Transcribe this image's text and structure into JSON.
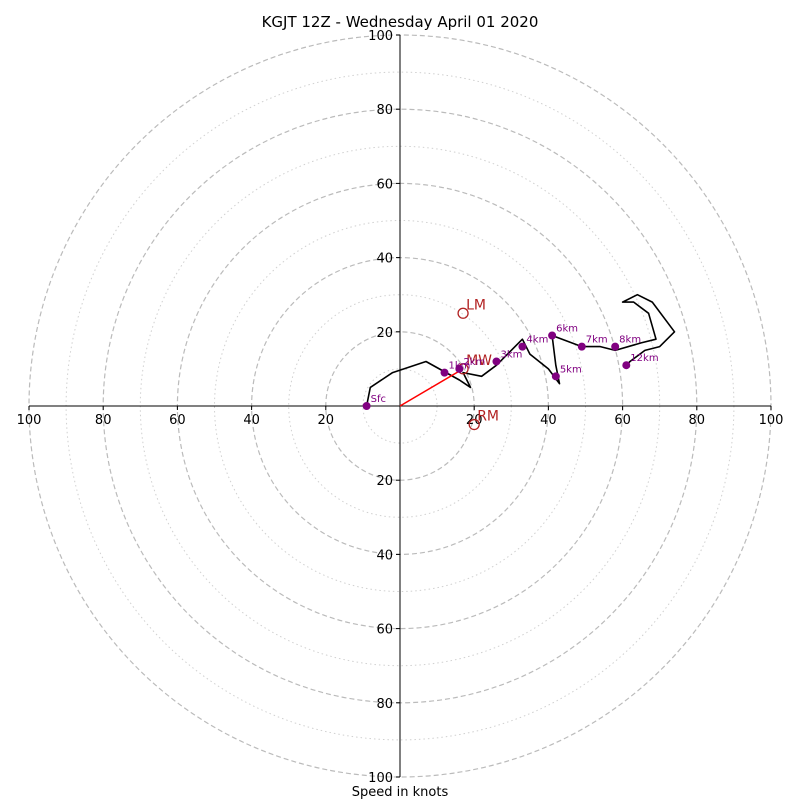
{
  "chart_data": {
    "type": "hodograph",
    "title": "KGJT 12Z - Wednesday April 01 2020",
    "xlabel": "Speed in knots",
    "range": [
      -100,
      100
    ],
    "rings_dashed": [
      20,
      40,
      60,
      80,
      100
    ],
    "rings_dotted": [
      10,
      30,
      50,
      70,
      90
    ],
    "x_tick_labels": [
      "100",
      "80",
      "60",
      "40",
      "20",
      "20",
      "40",
      "60",
      "80",
      "100"
    ],
    "x_tick_values": [
      -100,
      -80,
      -60,
      -40,
      -20,
      20,
      40,
      60,
      80,
      100
    ],
    "y_tick_labels": [
      "100",
      "80",
      "60",
      "40",
      "20",
      "20",
      "40",
      "60",
      "80",
      "100"
    ],
    "y_tick_values": [
      100,
      80,
      60,
      40,
      20,
      -20,
      -40,
      -60,
      -80,
      -100
    ],
    "trace": [
      [
        -9,
        0
      ],
      [
        -8,
        5
      ],
      [
        -2,
        9
      ],
      [
        7,
        12
      ],
      [
        16,
        7
      ],
      [
        19,
        5
      ],
      [
        17,
        9
      ],
      [
        22,
        8
      ],
      [
        26,
        11
      ],
      [
        33,
        18
      ],
      [
        35,
        14
      ],
      [
        40,
        10
      ],
      [
        43,
        6
      ],
      [
        42,
        11
      ],
      [
        41,
        19
      ],
      [
        49,
        16
      ],
      [
        54,
        16
      ],
      [
        58,
        15
      ],
      [
        65,
        17
      ],
      [
        69,
        18
      ],
      [
        67,
        25
      ],
      [
        63,
        28
      ],
      [
        60,
        28
      ],
      [
        64,
        30
      ],
      [
        68,
        28
      ],
      [
        74,
        20
      ],
      [
        70,
        16
      ],
      [
        66,
        15
      ],
      [
        62,
        12
      ],
      [
        61,
        11
      ]
    ],
    "height_markers": [
      {
        "label": "Sfc",
        "u": -9,
        "v": 0
      },
      {
        "label": "1km",
        "u": 12,
        "v": 9
      },
      {
        "label": "2km",
        "u": 16,
        "v": 10
      },
      {
        "label": "3km",
        "u": 26,
        "v": 12
      },
      {
        "label": "4km",
        "u": 33,
        "v": 16
      },
      {
        "label": "5km",
        "u": 42,
        "v": 8
      },
      {
        "label": "6km",
        "u": 41,
        "v": 19
      },
      {
        "label": "7km",
        "u": 49,
        "v": 16
      },
      {
        "label": "8km",
        "u": 58,
        "v": 16
      },
      {
        "label": "12km",
        "u": 61,
        "v": 11
      }
    ],
    "storm_motion": [
      {
        "label": "LM",
        "u": 17,
        "v": 25
      },
      {
        "label": "MW",
        "u": 17,
        "v": 10
      },
      {
        "label": "RM",
        "u": 20,
        "v": -5
      }
    ],
    "shear_vector": {
      "u": 17,
      "v": 10
    },
    "colors": {
      "trace": "#000000",
      "markers": "#800080",
      "storm": "#b22222",
      "shear": "#ff0000",
      "grid": "#bbbbbb"
    }
  }
}
